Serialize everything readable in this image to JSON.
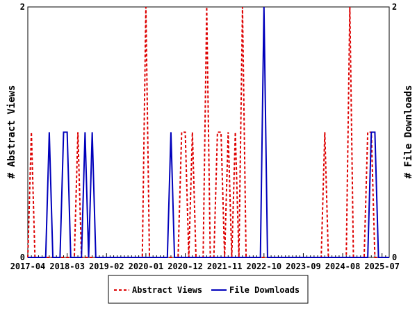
{
  "chart_data": {
    "type": "line",
    "title": "",
    "ylabel": "# Abstract Views",
    "y2label": "# File Downloads",
    "ylim": [
      0,
      2
    ],
    "y2lim": [
      0,
      2
    ],
    "start_month": "2017-04",
    "month_count": 102,
    "x_tick_labels": [
      "2017-04",
      "2018-03",
      "2019-02",
      "2020-01",
      "2020-12",
      "2021-11",
      "2022-10",
      "2023-09",
      "2024-08",
      "2025-07"
    ],
    "x_tick_step_months": 11,
    "y_tick_labels": [
      "0",
      "2"
    ],
    "y2_tick_labels": [
      "0",
      "2"
    ],
    "legend_placement": "bottom-center",
    "series": [
      {
        "name": "Abstract Views",
        "color": "#dd0000",
        "dash": true,
        "points": [
          [
            1,
            1
          ],
          [
            14,
            1
          ],
          [
            33,
            2
          ],
          [
            43,
            1
          ],
          [
            44,
            1
          ],
          [
            46,
            1
          ],
          [
            50,
            2
          ],
          [
            53,
            1
          ],
          [
            54,
            1
          ],
          [
            56,
            1
          ],
          [
            58,
            1
          ],
          [
            60,
            2
          ],
          [
            83,
            1
          ],
          [
            90,
            2
          ],
          [
            95,
            1
          ],
          [
            96,
            1
          ]
        ]
      },
      {
        "name": "File Downloads",
        "color": "#0000bb",
        "dash": false,
        "points": [
          [
            6,
            1
          ],
          [
            10,
            1
          ],
          [
            11,
            1
          ],
          [
            16,
            1
          ],
          [
            18,
            1
          ],
          [
            40,
            1
          ],
          [
            66,
            2
          ],
          [
            96,
            1
          ],
          [
            97,
            1
          ]
        ]
      }
    ]
  }
}
